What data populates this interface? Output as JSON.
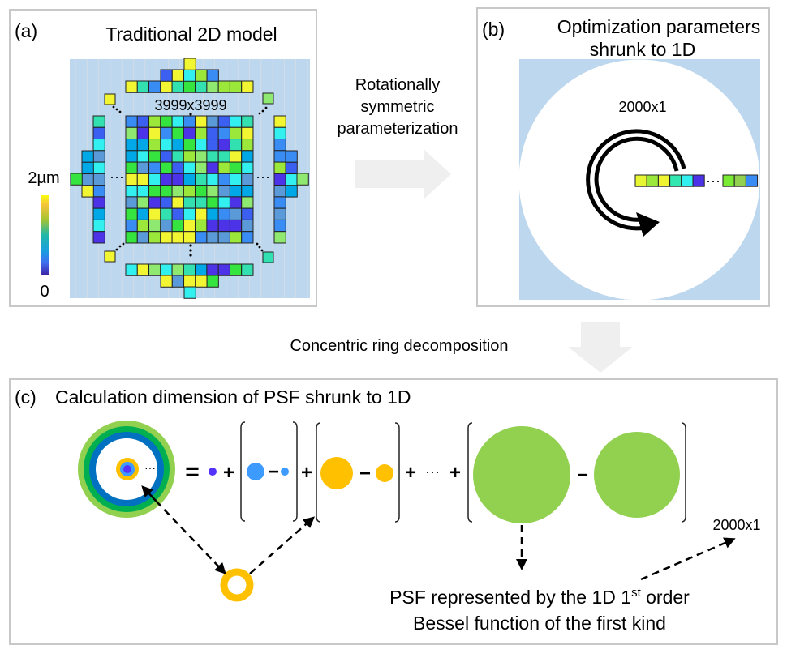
{
  "panel_a": {
    "label": "(a)",
    "title": "Traditional 2D model",
    "grid_size": "3999x3999",
    "colorbar_max": "2µm",
    "colorbar_min": "0",
    "ellipsis": "···"
  },
  "transition_ab": {
    "lines": [
      "Rotationally",
      "symmetric",
      "parameterization"
    ]
  },
  "panel_b": {
    "label": "(b)",
    "title_line1": "Optimization parameters",
    "title_line2": "shrunk to 1D",
    "vector_size": "2000x1",
    "ellipsis": "···"
  },
  "transition_bc": {
    "label": "Concentric ring decomposition"
  },
  "panel_c": {
    "label": "(c)",
    "title": "Calculation dimension of PSF shrunk to 1D",
    "equals": "=",
    "plus": "+",
    "minus": "−",
    "ellipsis": "···",
    "vector_size": "2000x1",
    "caption_line1_pre": "PSF represented by the 1D 1",
    "caption_line1_sup": "st",
    "caption_line1_post": " order",
    "caption_line2": "Bessel function of the first kind"
  },
  "colors": {
    "background_blue": "#bdd7ee",
    "transition_arrow": "#efefef",
    "ring_light_green": "#92d050",
    "ring_dark_green": "#00b050",
    "ring_blue": "#0070c0",
    "orange": "#ffc000",
    "light_blue": "#3d9bff",
    "purple": "#5533ff",
    "cell_palette": [
      "#f2f531",
      "#9be83b",
      "#35e43f",
      "#33e0b0",
      "#33f0f0",
      "#3a8cf5",
      "#3b5ff0",
      "#4d33e8",
      "#8fe870",
      "#5a9ad8",
      "#00a8e8",
      "#c8dcec"
    ]
  }
}
